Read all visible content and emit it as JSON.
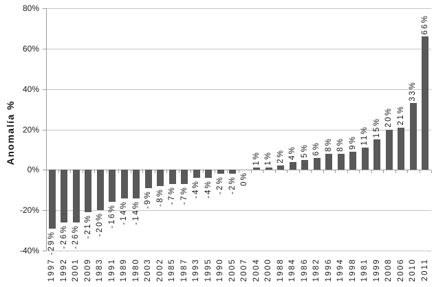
{
  "chart_data": {
    "type": "bar",
    "title": "",
    "ylabel": "Anomalía %",
    "xlabel": "",
    "ylim": [
      -40,
      80
    ],
    "grid": true,
    "legend_position": "none",
    "y_ticks": [
      {
        "value": 80,
        "label": "80%"
      },
      {
        "value": 60,
        "label": "60%"
      },
      {
        "value": 40,
        "label": "40%"
      },
      {
        "value": 20,
        "label": "20%"
      },
      {
        "value": 0,
        "label": "0%"
      },
      {
        "value": -20,
        "label": "-20%"
      },
      {
        "value": -40,
        "label": "-40%"
      }
    ],
    "categories": [
      "1997",
      "1992",
      "2001",
      "2009",
      "1983",
      "1991",
      "1989",
      "1980",
      "2003",
      "2002",
      "1985",
      "1987",
      "1993",
      "1995",
      "1990",
      "2005",
      "2007",
      "2004",
      "2000",
      "1988",
      "1984",
      "1986",
      "1982",
      "1996",
      "1994",
      "1998",
      "1981",
      "1999",
      "2008",
      "2006",
      "2010",
      "2011"
    ],
    "values": [
      -29,
      -26,
      -26,
      -21,
      -20,
      -16,
      -14,
      -14,
      -9,
      -8,
      -7,
      -7,
      -4,
      -4,
      -2,
      -2,
      0,
      1,
      1,
      2,
      4,
      5,
      6,
      8,
      8,
      9,
      11,
      15,
      20,
      21,
      33,
      66
    ],
    "value_labels": [
      "-29%",
      "-26%",
      "-26%",
      "-21%",
      "-20%",
      "-16%",
      "-14%",
      "-14%",
      "-9%",
      "-8%",
      "-7%",
      "-7%",
      "-4%",
      "-4%",
      "-2%",
      "-2%",
      "0%",
      "1%",
      "1%",
      "2%",
      "4%",
      "5%",
      "6%",
      "8%",
      "8%",
      "9%",
      "11%",
      "15%",
      "20%",
      "21%",
      "33%",
      "66%"
    ],
    "colors": {
      "bar": "#595959",
      "gridline": "#c3c3c3",
      "axis": "#9a9a9a",
      "text": "#1a1a1a"
    }
  }
}
